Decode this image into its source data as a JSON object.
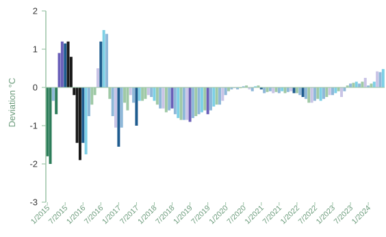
{
  "chart_data": {
    "type": "bar",
    "title": "",
    "ylabel": "Deviation °C",
    "xlabel": "",
    "ylim": [
      -3,
      2
    ],
    "yticks": [
      -3,
      -2,
      -1,
      0,
      1,
      2
    ],
    "grid": false,
    "legend": "none",
    "x_tick_labels": [
      "1/2015",
      "7/2015",
      "1/2016",
      "7/2016",
      "1/2017",
      "7/2017",
      "1/2018",
      "7/2018",
      "1/2019",
      "7/2019",
      "1/2020",
      "7/2020",
      "1/2021",
      "7/2021",
      "1/2022",
      "7/2022",
      "1/2023",
      "7/2023",
      "1/2024"
    ],
    "bar_colors": [
      "#1f5c8f",
      "#2d7d5a",
      "#8fb8d9",
      "#9fc9a6",
      "#c9c4e6",
      "#7ed0e6",
      "#1a1a1a",
      "#6a5fb8"
    ],
    "axis_color": "#9bc4a6",
    "months": [
      {
        "period": "1/2015",
        "value": -1.8,
        "color": "#2d7d5a"
      },
      {
        "period": "2/2015",
        "value": -2.0,
        "color": "#2d7d5a"
      },
      {
        "period": "3/2015",
        "value": -0.35,
        "color": "#8fb8d9"
      },
      {
        "period": "4/2015",
        "value": -0.7,
        "color": "#2d7d5a"
      },
      {
        "period": "5/2015",
        "value": 0.9,
        "color": "#6a5fb8"
      },
      {
        "period": "6/2015",
        "value": 1.2,
        "color": "#6a5fb8"
      },
      {
        "period": "7/2015",
        "value": 1.15,
        "color": "#1f5c8f"
      },
      {
        "period": "8/2015",
        "value": 1.2,
        "color": "#1a1a1a"
      },
      {
        "period": "9/2015",
        "value": 0.8,
        "color": "#1a1a1a"
      },
      {
        "period": "10/2015",
        "value": -0.2,
        "color": "#1a1a1a"
      },
      {
        "period": "11/2015",
        "value": -1.45,
        "color": "#1a1a1a"
      },
      {
        "period": "12/2015",
        "value": -1.9,
        "color": "#1a1a1a"
      },
      {
        "period": "1/2016",
        "value": -1.45,
        "color": "#1f5c8f"
      },
      {
        "period": "2/2016",
        "value": -1.75,
        "color": "#7ed0e6"
      },
      {
        "period": "3/2016",
        "value": -0.75,
        "color": "#8fb8d9"
      },
      {
        "period": "4/2016",
        "value": -0.45,
        "color": "#9fc9a6"
      },
      {
        "period": "5/2016",
        "value": -0.2,
        "color": "#9fc9a6"
      },
      {
        "period": "6/2016",
        "value": 0.5,
        "color": "#c9c4e6"
      },
      {
        "period": "7/2016",
        "value": 1.2,
        "color": "#1f5c8f"
      },
      {
        "period": "8/2016",
        "value": 1.5,
        "color": "#7ed0e6"
      },
      {
        "period": "9/2016",
        "value": 1.4,
        "color": "#8fb8d9"
      },
      {
        "period": "10/2016",
        "value": -0.3,
        "color": "#9fc9a6"
      },
      {
        "period": "11/2016",
        "value": -0.75,
        "color": "#8fb8d9"
      },
      {
        "period": "12/2016",
        "value": -1.05,
        "color": "#c9c4e6"
      },
      {
        "period": "1/2017",
        "value": -1.55,
        "color": "#1f5c8f"
      },
      {
        "period": "2/2017",
        "value": -1.05,
        "color": "#8fb8d9"
      },
      {
        "period": "3/2017",
        "value": -0.4,
        "color": "#9fc9a6"
      },
      {
        "period": "4/2017",
        "value": -0.6,
        "color": "#9fc9a6"
      },
      {
        "period": "5/2017",
        "value": -0.2,
        "color": "#c9c4e6"
      },
      {
        "period": "6/2017",
        "value": -0.4,
        "color": "#8fb8d9"
      },
      {
        "period": "7/2017",
        "value": -1.0,
        "color": "#1f5c8f"
      },
      {
        "period": "8/2017",
        "value": -0.35,
        "color": "#7ed0e6"
      },
      {
        "period": "9/2017",
        "value": -0.35,
        "color": "#9fc9a6"
      },
      {
        "period": "10/2017",
        "value": -0.3,
        "color": "#9fc9a6"
      },
      {
        "period": "11/2017",
        "value": -0.2,
        "color": "#c9c4e6"
      },
      {
        "period": "12/2017",
        "value": -0.25,
        "color": "#8fb8d9"
      },
      {
        "period": "1/2018",
        "value": -0.35,
        "color": "#7ed0e6"
      },
      {
        "period": "2/2018",
        "value": -0.45,
        "color": "#9fc9a6"
      },
      {
        "period": "3/2018",
        "value": -0.55,
        "color": "#8fb8d9"
      },
      {
        "period": "4/2018",
        "value": -0.55,
        "color": "#c9c4e6"
      },
      {
        "period": "5/2018",
        "value": -0.65,
        "color": "#9fc9a6"
      },
      {
        "period": "6/2018",
        "value": -0.6,
        "color": "#8fb8d9"
      },
      {
        "period": "7/2018",
        "value": -0.55,
        "color": "#6a5fb8"
      },
      {
        "period": "8/2018",
        "value": -0.7,
        "color": "#8fb8d9"
      },
      {
        "period": "9/2018",
        "value": -0.8,
        "color": "#7ed0e6"
      },
      {
        "period": "10/2018",
        "value": -0.85,
        "color": "#9fc9a6"
      },
      {
        "period": "11/2018",
        "value": -0.85,
        "color": "#8fb8d9"
      },
      {
        "period": "12/2018",
        "value": -0.85,
        "color": "#c9c4e6"
      },
      {
        "period": "1/2019",
        "value": -0.9,
        "color": "#6a5fb8"
      },
      {
        "period": "2/2019",
        "value": -0.8,
        "color": "#8fb8d9"
      },
      {
        "period": "3/2019",
        "value": -0.75,
        "color": "#9fc9a6"
      },
      {
        "period": "4/2019",
        "value": -0.7,
        "color": "#8fb8d9"
      },
      {
        "period": "5/2019",
        "value": -0.65,
        "color": "#7ed0e6"
      },
      {
        "period": "6/2019",
        "value": -0.6,
        "color": "#9fc9a6"
      },
      {
        "period": "7/2019",
        "value": -0.7,
        "color": "#6a5fb8"
      },
      {
        "period": "8/2019",
        "value": -0.6,
        "color": "#8fb8d9"
      },
      {
        "period": "9/2019",
        "value": -0.5,
        "color": "#7ed0e6"
      },
      {
        "period": "10/2019",
        "value": -0.45,
        "color": "#9fc9a6"
      },
      {
        "period": "11/2019",
        "value": -0.45,
        "color": "#8fb8d9"
      },
      {
        "period": "12/2019",
        "value": -0.35,
        "color": "#c9c4e6"
      },
      {
        "period": "1/2020",
        "value": -0.2,
        "color": "#8fb8d9"
      },
      {
        "period": "2/2020",
        "value": -0.1,
        "color": "#9fc9a6"
      },
      {
        "period": "3/2020",
        "value": -0.05,
        "color": "#8fb8d9"
      },
      {
        "period": "4/2020",
        "value": -0.02,
        "color": "#c9c4e6"
      },
      {
        "period": "5/2020",
        "value": -0.05,
        "color": "#8fb8d9"
      },
      {
        "period": "6/2020",
        "value": -0.02,
        "color": "#9fc9a6"
      },
      {
        "period": "7/2020",
        "value": 0.03,
        "color": "#8fb8d9"
      },
      {
        "period": "8/2020",
        "value": 0.05,
        "color": "#9fc9a6"
      },
      {
        "period": "9/2020",
        "value": -0.05,
        "color": "#c9c4e6"
      },
      {
        "period": "10/2020",
        "value": -0.1,
        "color": "#8fb8d9"
      },
      {
        "period": "11/2020",
        "value": 0.03,
        "color": "#7ed0e6"
      },
      {
        "period": "12/2020",
        "value": 0.05,
        "color": "#9fc9a6"
      },
      {
        "period": "1/2021",
        "value": -0.05,
        "color": "#1f5c8f"
      },
      {
        "period": "2/2021",
        "value": -0.15,
        "color": "#8fb8d9"
      },
      {
        "period": "3/2021",
        "value": -0.12,
        "color": "#9fc9a6"
      },
      {
        "period": "4/2021",
        "value": -0.1,
        "color": "#8fb8d9"
      },
      {
        "period": "5/2021",
        "value": -0.15,
        "color": "#c9c4e6"
      },
      {
        "period": "6/2021",
        "value": -0.12,
        "color": "#9fc9a6"
      },
      {
        "period": "7/2021",
        "value": -0.15,
        "color": "#8fb8d9"
      },
      {
        "period": "8/2021",
        "value": -0.1,
        "color": "#7ed0e6"
      },
      {
        "period": "9/2021",
        "value": -0.15,
        "color": "#9fc9a6"
      },
      {
        "period": "10/2021",
        "value": -0.12,
        "color": "#8fb8d9"
      },
      {
        "period": "11/2021",
        "value": -0.1,
        "color": "#c9c4e6"
      },
      {
        "period": "12/2021",
        "value": -0.15,
        "color": "#1f5c8f"
      },
      {
        "period": "1/2022",
        "value": -0.15,
        "color": "#9fc9a6"
      },
      {
        "period": "2/2022",
        "value": -0.2,
        "color": "#8fb8d9"
      },
      {
        "period": "3/2022",
        "value": -0.25,
        "color": "#1f5c8f"
      },
      {
        "period": "4/2022",
        "value": -0.3,
        "color": "#8fb8d9"
      },
      {
        "period": "5/2022",
        "value": -0.4,
        "color": "#9fc9a6"
      },
      {
        "period": "6/2022",
        "value": -0.4,
        "color": "#c9c4e6"
      },
      {
        "period": "7/2022",
        "value": -0.35,
        "color": "#8fb8d9"
      },
      {
        "period": "8/2022",
        "value": -0.3,
        "color": "#9fc9a6"
      },
      {
        "period": "9/2022",
        "value": -0.35,
        "color": "#7ed0e6"
      },
      {
        "period": "10/2022",
        "value": -0.3,
        "color": "#8fb8d9"
      },
      {
        "period": "11/2022",
        "value": -0.25,
        "color": "#9fc9a6"
      },
      {
        "period": "12/2022",
        "value": -0.2,
        "color": "#c9c4e6"
      },
      {
        "period": "1/2023",
        "value": -0.2,
        "color": "#8fb8d9"
      },
      {
        "period": "2/2023",
        "value": -0.15,
        "color": "#7ed0e6"
      },
      {
        "period": "3/2023",
        "value": -0.1,
        "color": "#9fc9a6"
      },
      {
        "period": "4/2023",
        "value": -0.25,
        "color": "#c9c4e6"
      },
      {
        "period": "5/2023",
        "value": -0.1,
        "color": "#8fb8d9"
      },
      {
        "period": "6/2023",
        "value": 0.05,
        "color": "#9fc9a6"
      },
      {
        "period": "7/2023",
        "value": 0.1,
        "color": "#8fb8d9"
      },
      {
        "period": "8/2023",
        "value": 0.12,
        "color": "#9fc9a6"
      },
      {
        "period": "9/2023",
        "value": 0.15,
        "color": "#7ed0e6"
      },
      {
        "period": "10/2023",
        "value": 0.1,
        "color": "#8fb8d9"
      },
      {
        "period": "11/2023",
        "value": 0.15,
        "color": "#9fc9a6"
      },
      {
        "period": "12/2023",
        "value": 0.25,
        "color": "#c9c4e6"
      },
      {
        "period": "1/2024",
        "value": 0.05,
        "color": "#8fb8d9"
      },
      {
        "period": "2/2024",
        "value": 0.1,
        "color": "#9fc9a6"
      },
      {
        "period": "3/2024",
        "value": 0.15,
        "color": "#7ed0e6"
      },
      {
        "period": "4/2024",
        "value": 0.42,
        "color": "#c9c4e6"
      },
      {
        "period": "5/2024",
        "value": 0.4,
        "color": "#8fb8d9"
      },
      {
        "period": "6/2024",
        "value": 0.48,
        "color": "#7ed0e6"
      }
    ]
  }
}
